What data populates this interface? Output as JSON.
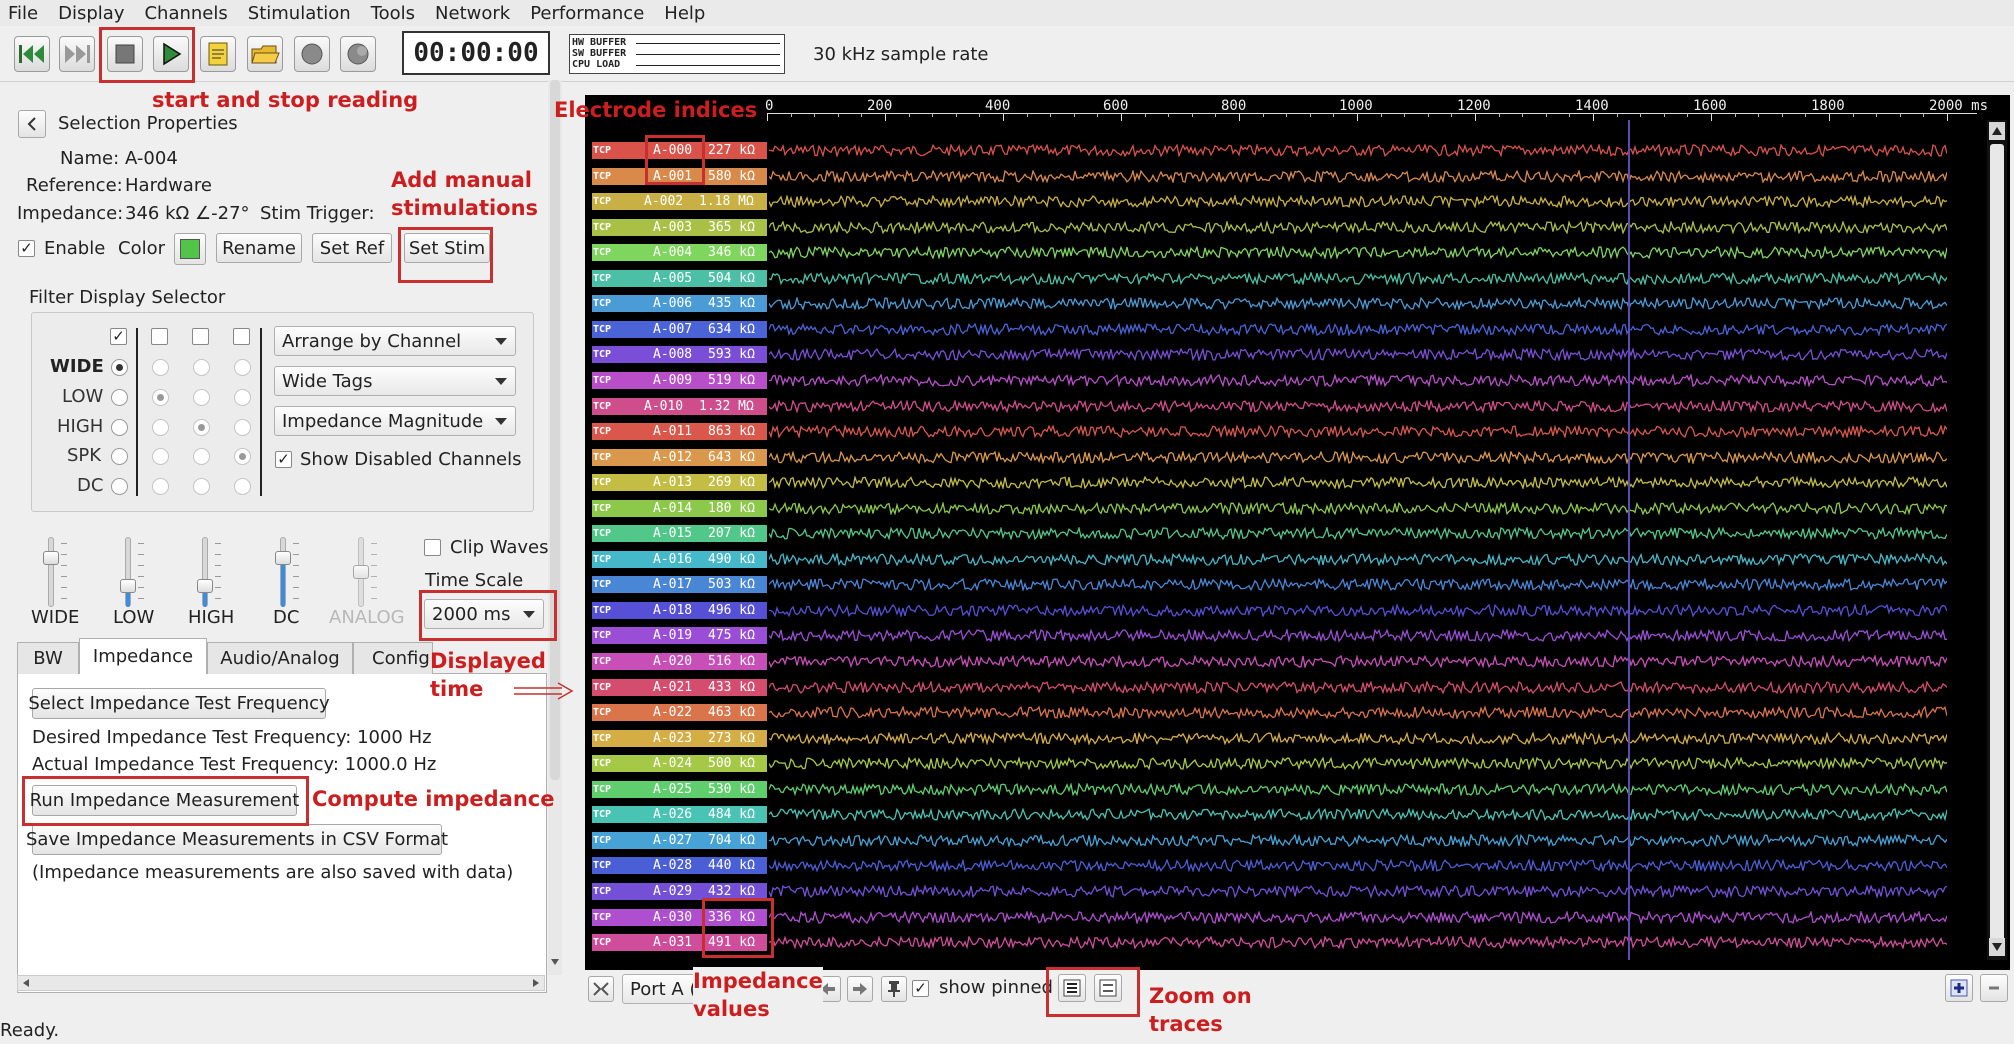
{
  "menu": [
    "File",
    "Display",
    "Channels",
    "Stimulation",
    "Tools",
    "Network",
    "Performance",
    "Help"
  ],
  "toolbar": {
    "timer": "00:00:00",
    "buffer_labels": [
      "HW BUFFER",
      "SW BUFFER",
      "CPU LOAD"
    ],
    "sample_rate": "30 kHz sample rate",
    "icons": [
      "rewind-icon",
      "fast-forward-icon",
      "stop-icon",
      "play-icon",
      "notes-icon",
      "open-folder-icon",
      "record-icon",
      "trigger-record-icon"
    ]
  },
  "selection": {
    "title": "Selection Properties",
    "name_label": "Name:",
    "name_value": "A-004",
    "reference_label": "Reference:",
    "reference_value": "Hardware",
    "impedance_label": "Impedance:",
    "impedance_value": "346 kΩ ∠-27°",
    "stim_trigger_label": "Stim Trigger:",
    "enable_label": "Enable",
    "color_label": "Color",
    "color_value": "#52c44a",
    "rename_button": "Rename",
    "setref_button": "Set Ref",
    "setstim_button": "Set Stim"
  },
  "filter": {
    "title": "Filter Display Selector",
    "rows": [
      "WIDE",
      "LOW",
      "HIGH",
      "SPK",
      "DC"
    ],
    "combos": [
      "Arrange by Channel",
      "Wide Tags",
      "Impedance Magnitude"
    ],
    "show_disabled_label": "Show Disabled Channels"
  },
  "sliders": {
    "labels": [
      "WIDE",
      "LOW",
      "HIGH",
      "DC",
      "ANALOG"
    ],
    "levels": [
      0.75,
      0.25,
      0.25,
      0.75,
      0.5
    ],
    "clip_waves_label": "Clip Waves",
    "time_scale_label": "Time Scale",
    "time_scale_value": "2000 ms"
  },
  "tabs": [
    "BW",
    "Impedance",
    "Audio/Analog",
    "Config"
  ],
  "active_tab": "Impedance",
  "impedance_panel": {
    "select_freq_button": "Select Impedance Test Frequency",
    "desired_freq": "Desired Impedance Test Frequency: 1000 Hz",
    "actual_freq": "Actual Impedance Test Frequency: 1000.0 Hz",
    "run_button": "Run Impedance Measurement",
    "save_button": "Save Impedance Measurements in CSV Format",
    "note": "(Impedance measurements are also saved with data)"
  },
  "plot": {
    "axis_ticks": [
      "0",
      "200",
      "400",
      "600",
      "800",
      "1000",
      "1200",
      "1400",
      "1600",
      "1800",
      "2000 ms"
    ],
    "tag_prefix": "TCP",
    "channels": [
      {
        "name": "A-000",
        "imp": "227 kΩ",
        "color": "#d9534b"
      },
      {
        "name": "A-001",
        "imp": "580 kΩ",
        "color": "#d98a4b"
      },
      {
        "name": "A-002",
        "imp": "1.18 MΩ",
        "color": "#c9b045"
      },
      {
        "name": "A-003",
        "imp": "365 kΩ",
        "color": "#a9c046"
      },
      {
        "name": "A-004",
        "imp": "346 kΩ",
        "color": "#7fd65e"
      },
      {
        "name": "A-005",
        "imp": "504 kΩ",
        "color": "#4cc0a6"
      },
      {
        "name": "A-006",
        "imp": "435 kΩ",
        "color": "#4a9bd6"
      },
      {
        "name": "A-007",
        "imp": "634 kΩ",
        "color": "#4a63d6"
      },
      {
        "name": "A-008",
        "imp": "593 kΩ",
        "color": "#7a4ed6"
      },
      {
        "name": "A-009",
        "imp": "519 kΩ",
        "color": "#b84fc9"
      },
      {
        "name": "A-010",
        "imp": "1.32 MΩ",
        "color": "#d04d8b"
      },
      {
        "name": "A-011",
        "imp": "863 kΩ",
        "color": "#d9584b"
      },
      {
        "name": "A-012",
        "imp": "643 kΩ",
        "color": "#d9984b"
      },
      {
        "name": "A-013",
        "imp": "269 kΩ",
        "color": "#c3bd44"
      },
      {
        "name": "A-014",
        "imp": "180 kΩ",
        "color": "#8cc94a"
      },
      {
        "name": "A-015",
        "imp": "207 kΩ",
        "color": "#52c78a"
      },
      {
        "name": "A-016",
        "imp": "490 kΩ",
        "color": "#45b8c9"
      },
      {
        "name": "A-017",
        "imp": "503 kΩ",
        "color": "#4a86d6"
      },
      {
        "name": "A-018",
        "imp": "496 kΩ",
        "color": "#5550d6"
      },
      {
        "name": "A-019",
        "imp": "475 kΩ",
        "color": "#9a4ed6"
      },
      {
        "name": "A-020",
        "imp": "516 kΩ",
        "color": "#c84fb8"
      },
      {
        "name": "A-021",
        "imp": "433 kΩ",
        "color": "#d44d6e"
      },
      {
        "name": "A-022",
        "imp": "463 kΩ",
        "color": "#d9744b"
      },
      {
        "name": "A-023",
        "imp": "273 kΩ",
        "color": "#d4ad45"
      },
      {
        "name": "A-024",
        "imp": "500 kΩ",
        "color": "#a5c846"
      },
      {
        "name": "A-025",
        "imp": "530 kΩ",
        "color": "#5fcf6d"
      },
      {
        "name": "A-026",
        "imp": "484 kΩ",
        "color": "#48c3b4"
      },
      {
        "name": "A-027",
        "imp": "704 kΩ",
        "color": "#47a2d6"
      },
      {
        "name": "A-028",
        "imp": "440 kΩ",
        "color": "#4a5fd6"
      },
      {
        "name": "A-029",
        "imp": "432 kΩ",
        "color": "#7350d6"
      },
      {
        "name": "A-030",
        "imp": "336 kΩ",
        "color": "#b04ed0"
      },
      {
        "name": "A-031",
        "imp": "491 kΩ",
        "color": "#d04d9c"
      }
    ],
    "show_pinned_label": "show pinned",
    "port_value": "Port A (",
    "cursor_fraction": 0.73
  },
  "status": "Ready.",
  "annotations": {
    "start_stop": "start and stop reading",
    "electrode": "Electrode indices",
    "manual_stim": "Add manual\nstimulations",
    "displayed_time": "Displayed\ntime",
    "compute_imp": "Compute impedance",
    "imp_values": "Impedance\nvalues",
    "zoom": "Zoom on\ntraces"
  }
}
